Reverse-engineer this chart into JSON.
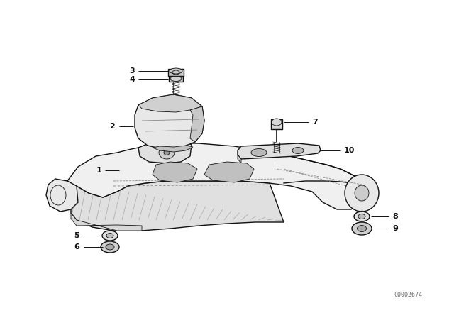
{
  "bg_color": "#ffffff",
  "line_color": "#111111",
  "fig_width": 6.4,
  "fig_height": 4.48,
  "dpi": 100,
  "watermark": "C0002674",
  "gray_light": "#e8e8e8",
  "gray_mid": "#cccccc",
  "gray_dark": "#aaaaaa"
}
